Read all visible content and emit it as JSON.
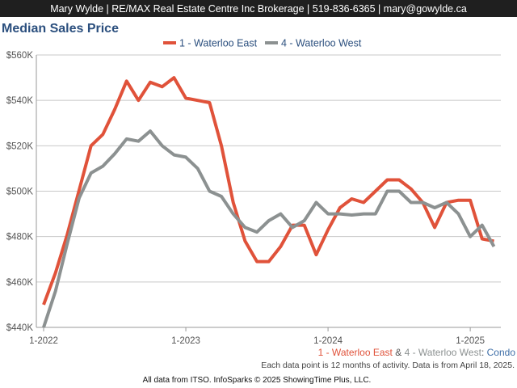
{
  "header": "Mary Wylde | RE/MAX Real Estate Centre Inc Brokerage | 519-836-6365 | mary@gowylde.ca",
  "chart_data": {
    "type": "line",
    "title": "Median Sales Price",
    "categories": [
      "1-2022",
      null,
      null,
      null,
      null,
      null,
      null,
      null,
      null,
      null,
      null,
      null,
      "1-2023",
      null,
      null,
      null,
      null,
      null,
      null,
      null,
      null,
      null,
      null,
      null,
      "1-2024",
      null,
      null,
      null,
      null,
      null,
      null,
      null,
      null,
      null,
      null,
      null,
      "1-2025",
      null,
      null
    ],
    "series": [
      {
        "name": "1 - Waterloo East",
        "color": "#e0523a",
        "values": [
          450000,
          464000,
          481000,
          500500,
          520000,
          525000,
          536000,
          548500,
          540000,
          548000,
          546000,
          550000,
          541000,
          540000,
          539000,
          520000,
          495000,
          478000,
          469000,
          469000,
          475600,
          485000,
          485000,
          472000,
          483000,
          492700,
          496600,
          495000,
          500000,
          505000,
          505000,
          501000,
          495000,
          484000,
          495000,
          496000,
          496000,
          479000,
          478000
        ]
      },
      {
        "name": "4 - Waterloo West",
        "color": "#8c9191",
        "values": [
          440000,
          456000,
          477000,
          497000,
          508000,
          511000,
          516500,
          523000,
          522000,
          526500,
          520000,
          516000,
          515000,
          510000,
          500000,
          497700,
          490000,
          484000,
          482000,
          487000,
          490000,
          484000,
          487000,
          495000,
          490000,
          490000,
          489500,
          490000,
          490000,
          500000,
          500000,
          495000,
          495000,
          492700,
          495000,
          490000,
          480000,
          485000,
          475600
        ]
      }
    ],
    "ylim": [
      440000,
      560000
    ],
    "yticks": [
      {
        "value": 440000,
        "label": "$440K"
      },
      {
        "value": 460000,
        "label": "$460K"
      },
      {
        "value": 480000,
        "label": "$480K"
      },
      {
        "value": 500000,
        "label": "$500K"
      },
      {
        "value": 520000,
        "label": "$520K"
      },
      {
        "value": 540000,
        "label": "$540K"
      },
      {
        "value": 560000,
        "label": "$560K"
      }
    ],
    "grid": true,
    "legend": "top"
  },
  "caption": {
    "separator": "&",
    "type_separator": ":",
    "property_type": "Condo"
  },
  "note": "Each data point is 12 months of activity. Data is from April 18, 2025.",
  "credit": "All data from ITSO. InfoSparks © 2025 ShowingTime Plus, LLC."
}
